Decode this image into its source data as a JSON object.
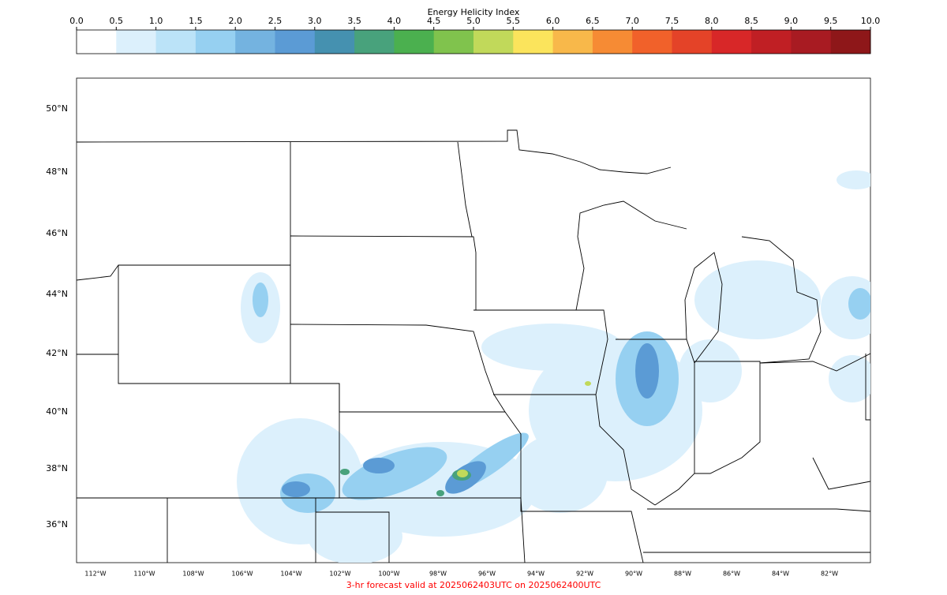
{
  "colorbar": {
    "title": "Energy Helicity Index",
    "ticks": [
      {
        "value": 0,
        "label": "0.0"
      },
      {
        "value": 0.5,
        "label": "0.5"
      },
      {
        "value": 1,
        "label": "1.0"
      },
      {
        "value": 1.5,
        "label": "1.5"
      },
      {
        "value": 2,
        "label": "2.0"
      },
      {
        "value": 2.5,
        "label": "2.5"
      },
      {
        "value": 3,
        "label": "3.0"
      },
      {
        "value": 3.5,
        "label": "3.5"
      },
      {
        "value": 4,
        "label": "4.0"
      },
      {
        "value": 4.5,
        "label": "4.5"
      },
      {
        "value": 5,
        "label": "5.0"
      },
      {
        "value": 5.5,
        "label": "5.5"
      },
      {
        "value": 6,
        "label": "6.0"
      },
      {
        "value": 6.5,
        "label": "6.5"
      },
      {
        "value": 7,
        "label": "7.0"
      },
      {
        "value": 7.5,
        "label": "7.5"
      },
      {
        "value": 8,
        "label": "8.0"
      },
      {
        "value": 8.5,
        "label": "8.5"
      },
      {
        "value": 9,
        "label": "9.0"
      },
      {
        "value": 9.5,
        "label": "9.5"
      },
      {
        "value": 10,
        "label": "10.0"
      }
    ],
    "colors": [
      "#ffffff",
      "#dcf0fc",
      "#bbe3f8",
      "#96d0f1",
      "#74b3e0",
      "#5b9bd5",
      "#4591b0",
      "#48a27c",
      "#4bb04f",
      "#80c34d",
      "#c1d95a",
      "#fbe45c",
      "#f8b84a",
      "#f68b34",
      "#f1612a",
      "#e44328",
      "#d82728",
      "#c01f24",
      "#a81b22",
      "#8e1719"
    ]
  },
  "map": {
    "lat_labels": [
      {
        "value": 50,
        "label": "50°N"
      },
      {
        "value": 48,
        "label": "48°N"
      },
      {
        "value": 46,
        "label": "46°N"
      },
      {
        "value": 44,
        "label": "44°N"
      },
      {
        "value": 42,
        "label": "42°N"
      },
      {
        "value": 40,
        "label": "40°N"
      },
      {
        "value": 38,
        "label": "38°N"
      },
      {
        "value": 36,
        "label": "36°N"
      }
    ],
    "lon_labels": [
      {
        "value": 112,
        "label": "112°W"
      },
      {
        "value": 110,
        "label": "110°W"
      },
      {
        "value": 108,
        "label": "108°W"
      },
      {
        "value": 106,
        "label": "106°W"
      },
      {
        "value": 104,
        "label": "104°W"
      },
      {
        "value": 102,
        "label": "102°W"
      },
      {
        "value": 100,
        "label": "100°W"
      },
      {
        "value": 98,
        "label": "98°W"
      },
      {
        "value": 96,
        "label": "96°W"
      },
      {
        "value": 94,
        "label": "94°W"
      },
      {
        "value": 92,
        "label": "92°W"
      },
      {
        "value": 90,
        "label": "90°W"
      },
      {
        "value": 88,
        "label": "88°W"
      },
      {
        "value": 86,
        "label": "86°W"
      },
      {
        "value": 84,
        "label": "84°W"
      },
      {
        "value": 82,
        "label": "82°W"
      }
    ],
    "footer": "3-hr forecast valid at 2025062403UTC on 2025062400UTC"
  }
}
